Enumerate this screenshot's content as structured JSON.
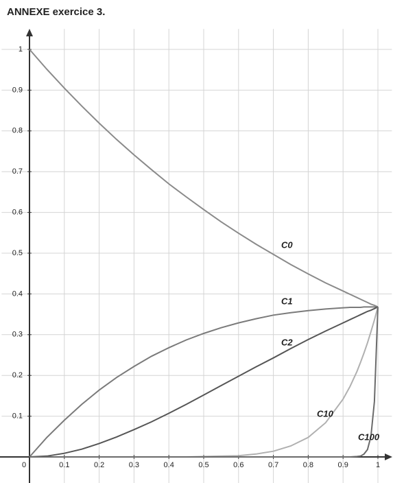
{
  "chart_data": {
    "type": "line",
    "title": "ANNEXE exercice 3.",
    "x": [
      0,
      0.05,
      0.1,
      0.15,
      0.2,
      0.25,
      0.3,
      0.35,
      0.4,
      0.45,
      0.5,
      0.55,
      0.6,
      0.65,
      0.7,
      0.75,
      0.8,
      0.85,
      0.9,
      0.92,
      0.94,
      0.95,
      0.96,
      0.97,
      0.98,
      0.99,
      1
    ],
    "series": [
      {
        "name": "C0",
        "color": "#8a8a8a",
        "values": [
          1,
          0.951,
          0.905,
          0.861,
          0.819,
          0.779,
          0.741,
          0.705,
          0.67,
          0.638,
          0.607,
          0.577,
          0.549,
          0.522,
          0.497,
          0.472,
          0.449,
          0.427,
          0.407,
          0.399,
          0.391,
          0.387,
          0.383,
          0.379,
          0.375,
          0.372,
          0.368
        ]
      },
      {
        "name": "C1",
        "color": "#7a7a7a",
        "values": [
          0,
          0.048,
          0.09,
          0.129,
          0.164,
          0.195,
          0.222,
          0.247,
          0.268,
          0.287,
          0.303,
          0.317,
          0.329,
          0.339,
          0.348,
          0.354,
          0.359,
          0.363,
          0.366,
          0.367,
          0.367,
          0.367,
          0.368,
          0.368,
          0.368,
          0.368,
          0.368
        ]
      },
      {
        "name": "C2",
        "color": "#555555",
        "values": [
          0,
          0.002,
          0.009,
          0.019,
          0.033,
          0.049,
          0.067,
          0.086,
          0.107,
          0.129,
          0.152,
          0.175,
          0.198,
          0.221,
          0.243,
          0.266,
          0.288,
          0.309,
          0.329,
          0.337,
          0.345,
          0.349,
          0.353,
          0.357,
          0.36,
          0.364,
          0.368
        ]
      },
      {
        "name": "C10",
        "color": "#b0b0b0",
        "values": [
          0,
          0,
          0,
          0,
          0,
          0,
          0,
          0,
          0,
          0,
          0.001,
          0.002,
          0.003,
          0.007,
          0.014,
          0.027,
          0.048,
          0.084,
          0.142,
          0.173,
          0.21,
          0.232,
          0.255,
          0.28,
          0.307,
          0.336,
          0.368
        ]
      },
      {
        "name": "C100",
        "color": "#6a6a6a",
        "values": [
          0,
          0,
          0,
          0,
          0,
          0,
          0,
          0,
          0,
          0,
          0,
          0,
          0,
          0,
          0,
          0,
          0,
          0,
          0,
          0,
          0.001,
          0.002,
          0.007,
          0.018,
          0.05,
          0.136,
          0.368
        ]
      }
    ],
    "xlim": [
      -0.08,
      1.04
    ],
    "ylim": [
      -0.065,
      1.05
    ],
    "xticks": [
      0,
      0.1,
      0.2,
      0.3,
      0.4,
      0.5,
      0.6,
      0.7,
      0.8,
      0.9,
      1
    ],
    "yticks": [
      0.1,
      0.2,
      0.3,
      0.4,
      0.5,
      0.6,
      0.7,
      0.8,
      0.9,
      1
    ],
    "grid": true
  }
}
